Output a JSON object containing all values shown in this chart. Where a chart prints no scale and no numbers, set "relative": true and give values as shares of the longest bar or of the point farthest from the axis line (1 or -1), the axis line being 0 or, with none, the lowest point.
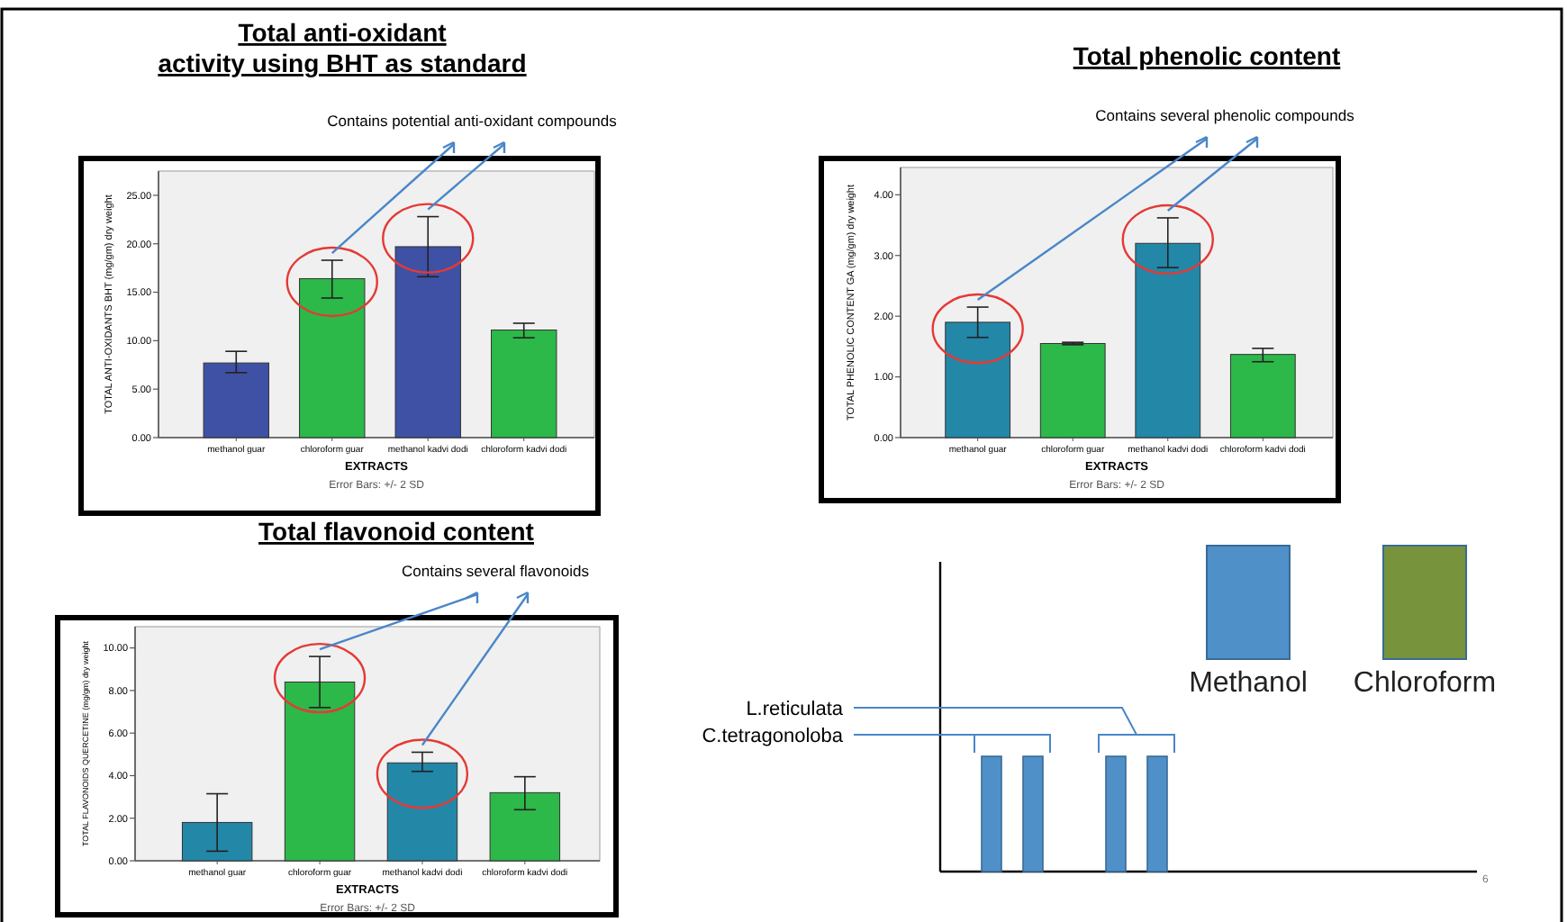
{
  "chart_data": [
    {
      "type": "bar",
      "title": "Total anti-oxidant\nactivity using BHT as standard",
      "subtitle": "Contains potential anti-oxidant compounds",
      "xlabel": "EXTRACTS",
      "ylabel": "TOTAL ANTI-OXIDANTS BHT (mg/gm) dry weight",
      "categories": [
        "methanol guar",
        "chloroform guar",
        "methanol kadvi dodi",
        "chloroform kadvi dodi"
      ],
      "values": [
        7.7,
        16.4,
        19.7,
        11.1
      ],
      "colors": [
        "#3f51a5",
        "#2db84a",
        "#3f51a5",
        "#2db84a"
      ],
      "errors": [
        [
          6.7,
          8.9
        ],
        [
          14.4,
          18.3
        ],
        [
          16.6,
          22.8
        ],
        [
          10.3,
          11.8
        ]
      ],
      "ylim": [
        0,
        27.5
      ],
      "yticks": [
        {
          "value": 0,
          "label": "0.00"
        },
        {
          "value": 5,
          "label": "5.00"
        },
        {
          "value": 10,
          "label": "10.00"
        },
        {
          "value": 15,
          "label": "15.00"
        },
        {
          "value": 20,
          "label": "20.00"
        },
        {
          "value": 25,
          "label": "25.00"
        }
      ],
      "annotations": [
        "Error Bars: +/- 2 SD"
      ]
    },
    {
      "type": "bar",
      "title": "Total phenolic content",
      "subtitle": "Contains several phenolic compounds",
      "xlabel": "EXTRACTS",
      "ylabel": "TOTAL PHENOLIC CONTENT GA (mg/gm) dry weight",
      "categories": [
        "methanol guar",
        "chloroform guar",
        "methanol kadvi dodi",
        "chloroform kadvi dodi"
      ],
      "values": [
        1.9,
        1.55,
        3.2,
        1.37
      ],
      "colors": [
        "#2387a8",
        "#2db84a",
        "#2387a8",
        "#2db84a"
      ],
      "errors": [
        [
          1.65,
          2.15
        ],
        [
          1.53,
          1.57
        ],
        [
          2.8,
          3.62
        ],
        [
          1.25,
          1.47
        ]
      ],
      "ylim": [
        0,
        4.45
      ],
      "yticks": [
        {
          "value": 0,
          "label": "0.00"
        },
        {
          "value": 1,
          "label": "1.00"
        },
        {
          "value": 2,
          "label": "2.00"
        },
        {
          "value": 3,
          "label": "3.00"
        },
        {
          "value": 4,
          "label": "4.00"
        }
      ],
      "annotations": [
        "Error Bars: +/- 2 SD"
      ]
    },
    {
      "type": "bar",
      "title": "Total flavonoid content",
      "subtitle": "Contains several flavonoids",
      "xlabel": "EXTRACTS",
      "ylabel": "TOTAL FLAVONOIDS QUERCETINE (mg/gm) dry weight",
      "categories": [
        "methanol guar",
        "chloroform guar",
        "methanol kadvi dodi",
        "chloroform kadvi dodi"
      ],
      "values": [
        1.8,
        8.4,
        4.6,
        3.2
      ],
      "colors": [
        "#2387a8",
        "#2db84a",
        "#2387a8",
        "#2db84a"
      ],
      "errors": [
        [
          0.45,
          3.15
        ],
        [
          7.2,
          9.6
        ],
        [
          4.2,
          5.1
        ],
        [
          2.4,
          3.95
        ]
      ],
      "ylim": [
        0,
        11
      ],
      "yticks": [
        {
          "value": 0,
          "label": "0.00"
        },
        {
          "value": 2,
          "label": "2.00"
        },
        {
          "value": 4,
          "label": "4.00"
        },
        {
          "value": 6,
          "label": "6.00"
        },
        {
          "value": 8,
          "label": "8.00"
        },
        {
          "value": 10,
          "label": "10.00"
        }
      ],
      "annotations": [
        "Error Bars: +/- 2 SD"
      ]
    },
    {
      "type": "bar",
      "relative": true,
      "categories": [
        null,
        null
      ],
      "series": [
        {
          "color": "#4f90c8",
          "values": [
            1,
            1
          ]
        },
        {
          "color": "#4f90c8",
          "values": [
            1,
            1
          ]
        }
      ],
      "annotations": [
        "L.reticulata",
        "C.tetragonoloba",
        "6",
        "Methanol",
        "Chloroform"
      ]
    }
  ]
}
